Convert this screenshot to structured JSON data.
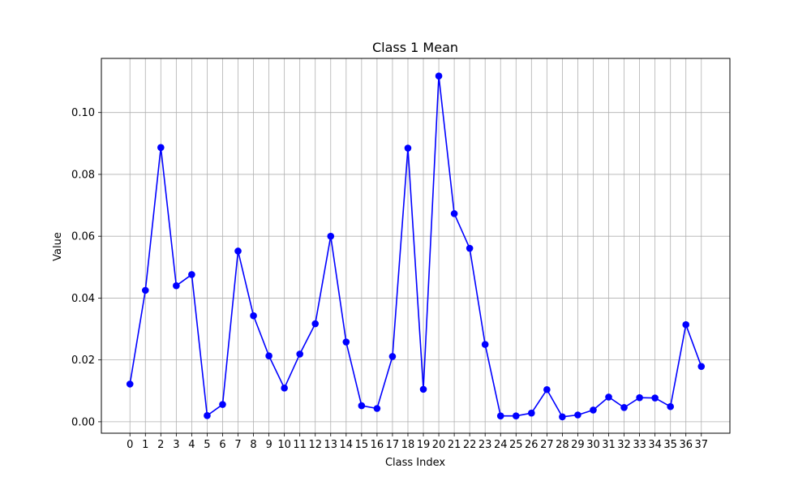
{
  "chart_data": {
    "type": "line",
    "title": "Class 1 Mean",
    "xlabel": "Class Index",
    "ylabel": "Value",
    "x": [
      0,
      1,
      2,
      3,
      4,
      5,
      6,
      7,
      8,
      9,
      10,
      11,
      12,
      13,
      14,
      15,
      16,
      17,
      18,
      19,
      20,
      21,
      22,
      23,
      24,
      25,
      26,
      27,
      28,
      29,
      30,
      31,
      32,
      33,
      34,
      35,
      36,
      37
    ],
    "series": [
      {
        "values": [
          0.0122,
          0.0425,
          0.0887,
          0.044,
          0.0476,
          0.002,
          0.0056,
          0.0552,
          0.0343,
          0.0213,
          0.0109,
          0.0219,
          0.0317,
          0.06,
          0.0258,
          0.0052,
          0.0043,
          0.0211,
          0.0885,
          0.0105,
          0.1118,
          0.0673,
          0.0561,
          0.025,
          0.0019,
          0.0019,
          0.0028,
          0.0104,
          0.0016,
          0.0022,
          0.0038,
          0.008,
          0.0046,
          0.0078,
          0.0077,
          0.0049,
          0.0314,
          0.0179
        ],
        "color": "#0000ff",
        "marker": "circle"
      }
    ],
    "xticks": [
      "0",
      "1",
      "2",
      "3",
      "4",
      "5",
      "6",
      "7",
      "8",
      "9",
      "10",
      "11",
      "12",
      "13",
      "14",
      "15",
      "16",
      "17",
      "18",
      "19",
      "20",
      "21",
      "22",
      "23",
      "24",
      "25",
      "26",
      "27",
      "28",
      "29",
      "30",
      "31",
      "32",
      "33",
      "34",
      "35",
      "36",
      "37"
    ],
    "yticks": [
      0.0,
      0.02,
      0.04,
      0.06,
      0.08,
      0.1
    ],
    "ytick_labels": [
      "0.00",
      "0.02",
      "0.04",
      "0.06",
      "0.08",
      "0.10"
    ],
    "xlim": [
      -1.85,
      38.85
    ],
    "ylim": [
      -0.0037,
      0.1175
    ],
    "grid": true,
    "grid_color": "#b0b0b0",
    "legend": false
  }
}
